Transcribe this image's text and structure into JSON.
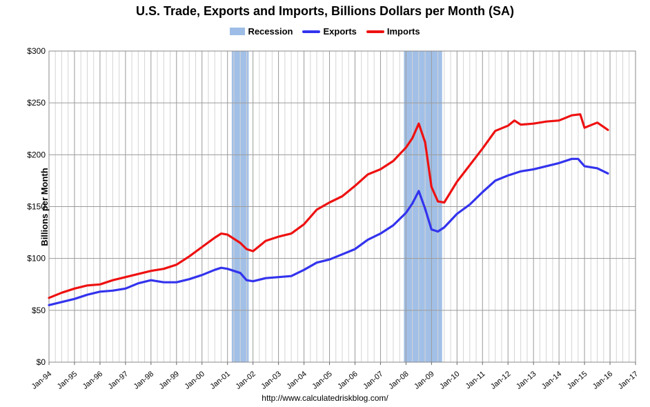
{
  "chart_data": {
    "type": "line",
    "title": "U.S. Trade, Exports and Imports, Billions Dollars per Month (SA)",
    "xlabel": "",
    "ylabel": "Billions per Month",
    "source": "http://www.calculatedriskblog.com/",
    "ylim": [
      0,
      300
    ],
    "yticks": [
      "$0",
      "$50",
      "$100",
      "$150",
      "$200",
      "$250",
      "$300"
    ],
    "xrange": [
      "1994-01",
      "2017-01"
    ],
    "xticks": [
      "Jan-94",
      "Jan-95",
      "Jan-96",
      "Jan-97",
      "Jan-98",
      "Jan-99",
      "Jan-00",
      "Jan-01",
      "Jan-02",
      "Jan-03",
      "Jan-04",
      "Jan-05",
      "Jan-06",
      "Jan-07",
      "Jan-08",
      "Jan-09",
      "Jan-10",
      "Jan-11",
      "Jan-12",
      "Jan-13",
      "Jan-14",
      "Jan-15",
      "Jan-16",
      "Jan-17"
    ],
    "grid": true,
    "legend": "top-center",
    "recessions": [
      {
        "start": "2001-03",
        "end": "2001-11"
      },
      {
        "start": "2007-12",
        "end": "2009-06"
      }
    ],
    "series": [
      {
        "name": "Recession",
        "color": "#9dbde6",
        "kind": "band"
      },
      {
        "name": "Exports",
        "color": "#3333ee",
        "points": [
          [
            "1994-01",
            55
          ],
          [
            "1994-07",
            58
          ],
          [
            "1995-01",
            61
          ],
          [
            "1995-07",
            65
          ],
          [
            "1996-01",
            68
          ],
          [
            "1996-07",
            69
          ],
          [
            "1997-01",
            71
          ],
          [
            "1997-07",
            76
          ],
          [
            "1998-01",
            79
          ],
          [
            "1998-07",
            77
          ],
          [
            "1999-01",
            77
          ],
          [
            "1999-07",
            80
          ],
          [
            "2000-01",
            84
          ],
          [
            "2000-07",
            89
          ],
          [
            "2000-10",
            91
          ],
          [
            "2001-01",
            90
          ],
          [
            "2001-07",
            86
          ],
          [
            "2001-10",
            79
          ],
          [
            "2002-01",
            78
          ],
          [
            "2002-07",
            81
          ],
          [
            "2003-01",
            82
          ],
          [
            "2003-07",
            83
          ],
          [
            "2004-01",
            89
          ],
          [
            "2004-07",
            96
          ],
          [
            "2005-01",
            99
          ],
          [
            "2005-07",
            104
          ],
          [
            "2006-01",
            109
          ],
          [
            "2006-07",
            118
          ],
          [
            "2007-01",
            124
          ],
          [
            "2007-07",
            132
          ],
          [
            "2008-01",
            144
          ],
          [
            "2008-04",
            153
          ],
          [
            "2008-07",
            165
          ],
          [
            "2008-10",
            148
          ],
          [
            "2009-01",
            128
          ],
          [
            "2009-04",
            126
          ],
          [
            "2009-07",
            130
          ],
          [
            "2010-01",
            143
          ],
          [
            "2010-07",
            152
          ],
          [
            "2011-01",
            164
          ],
          [
            "2011-07",
            175
          ],
          [
            "2012-01",
            180
          ],
          [
            "2012-07",
            184
          ],
          [
            "2013-01",
            186
          ],
          [
            "2013-07",
            189
          ],
          [
            "2014-01",
            192
          ],
          [
            "2014-07",
            196
          ],
          [
            "2014-10",
            196
          ],
          [
            "2015-01",
            189
          ],
          [
            "2015-07",
            187
          ],
          [
            "2015-12",
            182
          ]
        ]
      },
      {
        "name": "Imports",
        "color": "#ee1111",
        "points": [
          [
            "1994-01",
            62
          ],
          [
            "1994-07",
            67
          ],
          [
            "1995-01",
            71
          ],
          [
            "1995-07",
            74
          ],
          [
            "1996-01",
            75
          ],
          [
            "1996-07",
            79
          ],
          [
            "1997-01",
            82
          ],
          [
            "1997-07",
            85
          ],
          [
            "1998-01",
            88
          ],
          [
            "1998-07",
            90
          ],
          [
            "1999-01",
            94
          ],
          [
            "1999-07",
            102
          ],
          [
            "2000-01",
            111
          ],
          [
            "2000-07",
            120
          ],
          [
            "2000-10",
            124
          ],
          [
            "2001-01",
            123
          ],
          [
            "2001-07",
            115
          ],
          [
            "2001-10",
            109
          ],
          [
            "2002-01",
            107
          ],
          [
            "2002-07",
            117
          ],
          [
            "2003-01",
            121
          ],
          [
            "2003-07",
            124
          ],
          [
            "2004-01",
            133
          ],
          [
            "2004-07",
            147
          ],
          [
            "2005-01",
            154
          ],
          [
            "2005-07",
            160
          ],
          [
            "2006-01",
            170
          ],
          [
            "2006-07",
            181
          ],
          [
            "2007-01",
            186
          ],
          [
            "2007-07",
            194
          ],
          [
            "2008-01",
            207
          ],
          [
            "2008-04",
            216
          ],
          [
            "2008-07",
            230
          ],
          [
            "2008-10",
            212
          ],
          [
            "2009-01",
            169
          ],
          [
            "2009-04",
            155
          ],
          [
            "2009-07",
            154
          ],
          [
            "2010-01",
            174
          ],
          [
            "2010-07",
            190
          ],
          [
            "2011-01",
            206
          ],
          [
            "2011-07",
            223
          ],
          [
            "2012-01",
            228
          ],
          [
            "2012-04",
            233
          ],
          [
            "2012-07",
            229
          ],
          [
            "2013-01",
            230
          ],
          [
            "2013-07",
            232
          ],
          [
            "2014-01",
            233
          ],
          [
            "2014-07",
            238
          ],
          [
            "2014-11",
            239
          ],
          [
            "2015-01",
            226
          ],
          [
            "2015-07",
            231
          ],
          [
            "2015-12",
            224
          ]
        ]
      }
    ]
  }
}
